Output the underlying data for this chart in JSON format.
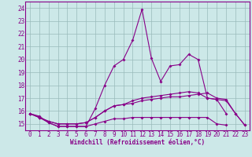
{
  "x": [
    0,
    1,
    2,
    3,
    4,
    5,
    6,
    7,
    8,
    9,
    10,
    11,
    12,
    13,
    14,
    15,
    16,
    17,
    18,
    19,
    20,
    21,
    22,
    23
  ],
  "line1": [
    15.8,
    15.6,
    15.1,
    14.8,
    14.8,
    14.8,
    14.8,
    16.2,
    18.0,
    19.5,
    20.0,
    21.5,
    23.9,
    20.1,
    18.3,
    19.5,
    19.6,
    20.4,
    20.0,
    17.0,
    16.9,
    15.8,
    null,
    null
  ],
  "line2": [
    15.8,
    15.5,
    15.1,
    14.8,
    14.8,
    14.8,
    14.8,
    15.0,
    15.2,
    15.4,
    15.4,
    15.5,
    15.5,
    15.5,
    15.5,
    15.5,
    15.5,
    15.5,
    15.5,
    15.5,
    15.0,
    14.9,
    null,
    null
  ],
  "line3": [
    15.8,
    15.5,
    15.2,
    15.0,
    15.0,
    15.0,
    15.1,
    15.5,
    16.0,
    16.4,
    16.5,
    16.6,
    16.8,
    16.9,
    17.0,
    17.1,
    17.1,
    17.2,
    17.3,
    17.4,
    17.0,
    16.9,
    15.8,
    14.9
  ],
  "line4": [
    15.8,
    15.5,
    15.2,
    15.0,
    15.0,
    15.0,
    15.1,
    15.5,
    16.0,
    16.4,
    16.5,
    16.8,
    17.0,
    17.1,
    17.2,
    17.3,
    17.4,
    17.5,
    17.4,
    17.0,
    16.9,
    16.8,
    15.8,
    14.9
  ],
  "ylabel_ticks": [
    15,
    16,
    17,
    18,
    19,
    20,
    21,
    22,
    23,
    24
  ],
  "ylim": [
    14.5,
    24.5
  ],
  "xlim": [
    -0.5,
    23.5
  ],
  "xlabel": "Windchill (Refroidissement éolien,°C)",
  "line_color": "#880088",
  "bg_color": "#cce8e8",
  "grid_color": "#99bbbb",
  "spine_color": "#880088",
  "tick_fontsize": 5.5,
  "xlabel_fontsize": 5.5,
  "marker_size": 2.0,
  "line_width": 0.8
}
